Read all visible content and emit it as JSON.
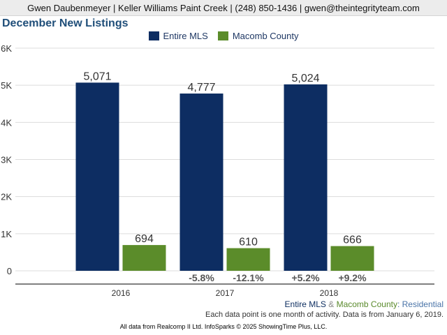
{
  "header": {
    "contact": "Gwen Daubenmeyer | Keller Williams Paint Creek | (248) 850-1436 | gwen@theintegrityteam.com"
  },
  "chart_data": {
    "type": "bar",
    "title": "December New Listings",
    "categories": [
      "2016",
      "2017",
      "2018"
    ],
    "series": [
      {
        "name": "Entire MLS",
        "color": "#0d2d62",
        "values": [
          5071,
          4777,
          5024
        ],
        "value_labels": [
          "5,071",
          "4,777",
          "5,024"
        ],
        "change_labels": [
          "",
          "-5.8%",
          "+5.2%"
        ]
      },
      {
        "name": "Macomb County",
        "color": "#5b8c2a",
        "values": [
          694,
          610,
          666
        ],
        "value_labels": [
          "694",
          "610",
          "666"
        ],
        "change_labels": [
          "",
          "-12.1%",
          "+9.2%"
        ]
      }
    ],
    "ylim": [
      0,
      6000
    ],
    "yticks": [
      0,
      1000,
      2000,
      3000,
      4000,
      5000,
      6000
    ],
    "ytick_labels": [
      "0",
      "1K",
      "2K",
      "3K",
      "4K",
      "5K",
      "6K"
    ],
    "grid": true,
    "legend_position": "top-center"
  },
  "subtitle": {
    "mls": "Entire MLS",
    "amp": "&",
    "county": "Macomb County",
    "suffix": ": Residential"
  },
  "note": "Each data point is one month of activity. Data is from January 6, 2019.",
  "footer": "All data from Realcomp II Ltd. InfoSparks © 2025 ShowingTime Plus, LLC."
}
